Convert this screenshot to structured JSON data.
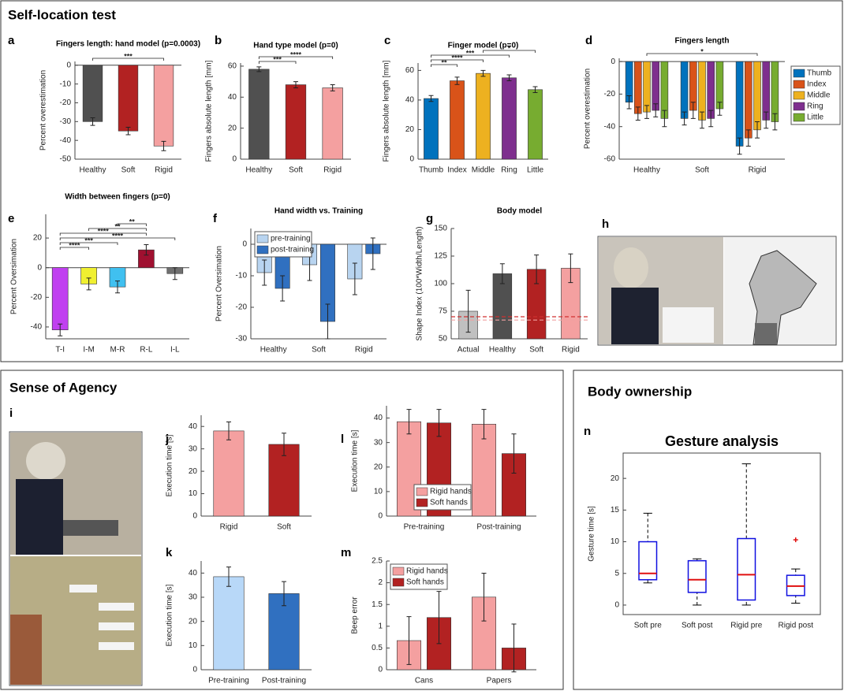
{
  "sections": [
    {
      "title": "Self-location test"
    },
    {
      "title": "Sense of Agency"
    },
    {
      "title": "Body ownership"
    }
  ],
  "photos": [
    {
      "panel": "h"
    },
    {
      "panel": "i"
    }
  ],
  "chart_data": [
    {
      "panel": "a",
      "type": "bar",
      "title": "Fingers length: hand model (p=0.0003)",
      "ylabel": "Percent overestimation",
      "categories": [
        "Healthy",
        "Soft",
        "Rigid"
      ],
      "values": [
        -30,
        -35,
        -43
      ],
      "errors": [
        2,
        2,
        2.5
      ],
      "colors": [
        "#505050",
        "#b22222",
        "#f4a0a0"
      ],
      "ylim": [
        -50,
        2
      ],
      "yticks": [
        -50,
        -40,
        -30,
        -20,
        -10,
        0
      ],
      "significance": [
        {
          "between": [
            "Healthy",
            "Rigid"
          ],
          "label": "***"
        }
      ]
    },
    {
      "panel": "b",
      "type": "bar",
      "title": "Hand type model (p=0)",
      "ylabel": "Fingers absolute length [mm]",
      "categories": [
        "Healthy",
        "Soft",
        "Rigid"
      ],
      "values": [
        58,
        48,
        46
      ],
      "errors": [
        1.5,
        2,
        2
      ],
      "colors": [
        "#505050",
        "#b22222",
        "#f4a0a0"
      ],
      "ylim": [
        0,
        62
      ],
      "yticks": [
        0,
        20,
        40,
        60
      ],
      "significance": [
        {
          "between": [
            "Healthy",
            "Soft"
          ],
          "label": "***"
        },
        {
          "between": [
            "Healthy",
            "Rigid"
          ],
          "label": "****"
        }
      ]
    },
    {
      "panel": "c",
      "type": "bar",
      "title": "Finger model (p=0)",
      "ylabel": "Fingers absolute length [mm]",
      "categories": [
        "Thumb",
        "Index",
        "Middle",
        "Ring",
        "Little"
      ],
      "values": [
        41,
        53,
        58,
        55,
        47
      ],
      "errors": [
        2,
        2.5,
        2,
        2,
        2
      ],
      "colors": [
        "#0072bd",
        "#d95319",
        "#edb120",
        "#7e2f8e",
        "#77ac30"
      ],
      "ylim": [
        0,
        65
      ],
      "yticks": [
        0,
        20,
        40,
        60
      ],
      "significance": [
        {
          "between": [
            "Thumb",
            "Index"
          ],
          "label": "**"
        },
        {
          "between": [
            "Thumb",
            "Middle"
          ],
          "label": "****"
        },
        {
          "between": [
            "Thumb",
            "Ring"
          ],
          "label": "***"
        },
        {
          "between": [
            "Middle",
            "Little"
          ],
          "label": "*"
        }
      ]
    },
    {
      "panel": "d",
      "type": "bar",
      "title": "Fingers length",
      "ylabel": "Percent overestimation",
      "categories": [
        "Healthy",
        "Soft",
        "Rigid"
      ],
      "series": [
        {
          "name": "Thumb",
          "color": "#0072bd",
          "values": [
            -25,
            -35,
            -52
          ],
          "errors": [
            4,
            4,
            5
          ]
        },
        {
          "name": "Index",
          "color": "#d95319",
          "values": [
            -32,
            -30,
            -47
          ],
          "errors": [
            4,
            5,
            5
          ]
        },
        {
          "name": "Middle",
          "color": "#edb120",
          "values": [
            -31,
            -36,
            -42
          ],
          "errors": [
            4,
            5,
            5
          ]
        },
        {
          "name": "Ring",
          "color": "#7e2f8e",
          "values": [
            -30,
            -35,
            -36
          ],
          "errors": [
            4,
            5,
            5
          ]
        },
        {
          "name": "Little",
          "color": "#77ac30",
          "values": [
            -35,
            -29,
            -37
          ],
          "errors": [
            5,
            4,
            5
          ]
        }
      ],
      "ylim": [
        -60,
        2
      ],
      "yticks": [
        -60,
        -40,
        -20,
        0
      ],
      "legend": "right",
      "significance": [
        {
          "between": [
            "Healthy",
            "Rigid"
          ],
          "label": "*"
        }
      ]
    },
    {
      "panel": "e",
      "type": "bar",
      "title": "Width between fingers (p=0)",
      "ylabel": "Percent Oversimation",
      "categories": [
        "T-I",
        "I-M",
        "M-R",
        "R-L",
        "I-L"
      ],
      "values": [
        -42,
        -11,
        -13,
        12,
        -4
      ],
      "errors": [
        4,
        4,
        4,
        3.5,
        4
      ],
      "colors": [
        "#c040f0",
        "#f0f030",
        "#40c0f0",
        "#a01030",
        "#707070"
      ],
      "ylim": [
        -48,
        36
      ],
      "yticks": [
        -40,
        -20,
        0,
        20
      ],
      "significance": [
        {
          "between": [
            "T-I",
            "I-M"
          ],
          "label": "****"
        },
        {
          "between": [
            "T-I",
            "M-R"
          ],
          "label": "***"
        },
        {
          "between": [
            "T-I",
            "I-L"
          ],
          "label": "****"
        },
        {
          "between": [
            "T-I",
            "R-L"
          ],
          "label": "****"
        },
        {
          "between": [
            "I-M",
            "R-L"
          ],
          "label": "**"
        },
        {
          "between": [
            "M-R",
            "R-L"
          ],
          "label": "**"
        }
      ]
    },
    {
      "panel": "f",
      "type": "bar",
      "title": "Hand width vs. Training",
      "ylabel": "Percent Oversimation",
      "categories": [
        "Healthy",
        "Soft",
        "Rigid"
      ],
      "series": [
        {
          "name": "pre-training",
          "color": "#b8d4f0",
          "values": [
            -9,
            -6.5,
            -11
          ],
          "errors": [
            4,
            5,
            5
          ]
        },
        {
          "name": "post-training",
          "color": "#3070c0",
          "values": [
            -14,
            -24.5,
            -3
          ],
          "errors": [
            4,
            5.5,
            5
          ]
        }
      ],
      "ylim": [
        -30,
        5
      ],
      "yticks": [
        -30,
        -20,
        -10,
        0
      ],
      "legend": "upper left"
    },
    {
      "panel": "g",
      "type": "bar",
      "title": "Body model",
      "ylabel": "Shape Index (100*Width/Length)",
      "categories": [
        "Actual",
        "Healthy",
        "Soft",
        "Rigid"
      ],
      "values": [
        75,
        109,
        113,
        114
      ],
      "errors": [
        19,
        9,
        13,
        13
      ],
      "colors": [
        "#c0c0c0",
        "#505050",
        "#b22222",
        "#f4a0a0"
      ],
      "ylim": [
        50,
        150
      ],
      "yticks": [
        50,
        75,
        100,
        125,
        150
      ],
      "hlines": [
        {
          "value": 70,
          "color": "#d03030"
        },
        {
          "value": 67,
          "color": "#f0a0a0"
        }
      ]
    },
    {
      "panel": "j",
      "type": "bar",
      "ylabel": "Execution time [s]",
      "categories": [
        "Rigid",
        "Soft"
      ],
      "values": [
        38,
        32
      ],
      "errors": [
        4,
        5
      ],
      "colors": [
        "#f4a0a0",
        "#b22222"
      ],
      "ylim": [
        0,
        45
      ],
      "yticks": [
        0,
        10,
        20,
        30,
        40
      ]
    },
    {
      "panel": "k",
      "type": "bar",
      "ylabel": "Execution time [s]",
      "categories": [
        "Pre-training",
        "Post-training"
      ],
      "values": [
        38.5,
        31.5
      ],
      "errors": [
        4,
        5
      ],
      "colors": [
        "#b8d8f8",
        "#3070c0"
      ],
      "ylim": [
        0,
        45
      ],
      "yticks": [
        0,
        10,
        20,
        30,
        40
      ]
    },
    {
      "panel": "l",
      "type": "bar",
      "ylabel": "Execution time [s]",
      "categories": [
        "Pre-training",
        "Post-training"
      ],
      "series": [
        {
          "name": "Rigid hands",
          "color": "#f4a0a0",
          "values": [
            38.5,
            37.5
          ],
          "errors": [
            5,
            6
          ]
        },
        {
          "name": "Soft hands",
          "color": "#b22222",
          "values": [
            38,
            25.5
          ],
          "errors": [
            5.5,
            8
          ]
        }
      ],
      "ylim": [
        0,
        45
      ],
      "yticks": [
        0,
        10,
        20,
        30,
        40
      ],
      "legend": "center"
    },
    {
      "panel": "m",
      "type": "bar",
      "ylabel": "Beep error",
      "categories": [
        "Cans",
        "Papers"
      ],
      "series": [
        {
          "name": "Rigid hands",
          "color": "#f4a0a0",
          "values": [
            0.67,
            1.67
          ],
          "errors": [
            0.55,
            0.55
          ]
        },
        {
          "name": "Soft hands",
          "color": "#b22222",
          "values": [
            1.2,
            0.5
          ],
          "errors": [
            0.6,
            0.55
          ]
        }
      ],
      "ylim": [
        0,
        2.5
      ],
      "yticks": [
        0,
        0.5,
        1,
        1.5,
        2,
        2.5
      ],
      "legend": "upper left"
    },
    {
      "panel": "n",
      "type": "box",
      "title": "Gesture analysis",
      "ylabel": "Gesture time [s]",
      "categories": [
        "Soft pre",
        "Soft post",
        "Rigid pre",
        "Rigid post"
      ],
      "boxes": [
        {
          "min": 3.5,
          "q1": 4,
          "median": 5,
          "q3": 10,
          "max": 14.5,
          "outliers": []
        },
        {
          "min": 0,
          "q1": 2,
          "median": 4,
          "q3": 7,
          "max": 7.3,
          "outliers": []
        },
        {
          "min": 0,
          "q1": 0.8,
          "median": 4.8,
          "q3": 10.5,
          "max": 22.3,
          "outliers": []
        },
        {
          "min": 0.3,
          "q1": 1.5,
          "median": 3,
          "q3": 4.7,
          "max": 5.7,
          "outliers": [
            10.3
          ]
        }
      ],
      "ylim": [
        -1.5,
        24
      ],
      "yticks": [
        0,
        5,
        10,
        15,
        20
      ]
    }
  ]
}
